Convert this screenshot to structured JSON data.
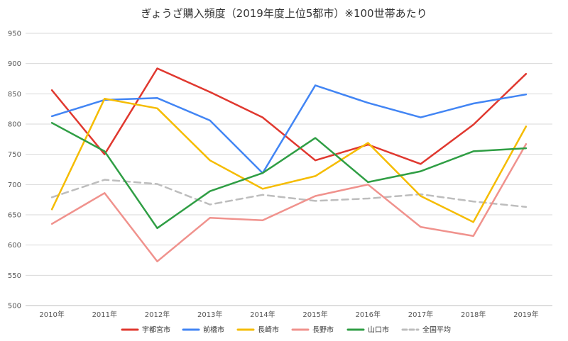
{
  "chart_data": {
    "type": "line",
    "title": "ぎょうざ購入頻度（2019年度上位5都市）※100世帯あたり",
    "xlabel": "",
    "ylabel": "",
    "ylim": [
      500,
      950
    ],
    "yticks": [
      500,
      550,
      600,
      650,
      700,
      750,
      800,
      850,
      900,
      950
    ],
    "grid": true,
    "legend_position": "bottom",
    "categories": [
      "2010年",
      "2011年",
      "2012年",
      "2013年",
      "2014年",
      "2015年",
      "2016年",
      "2017年",
      "2018年",
      "2019年"
    ],
    "series": [
      {
        "name": "宇都宮市",
        "color": "#e0382f",
        "dashed": false,
        "values": [
          856,
          750,
          892,
          853,
          811,
          740,
          766,
          734,
          799,
          883
        ]
      },
      {
        "name": "前橋市",
        "color": "#4285f4",
        "dashed": false,
        "values": [
          813,
          840,
          843,
          806,
          719,
          864,
          835,
          811,
          834,
          849
        ]
      },
      {
        "name": "長崎市",
        "color": "#f5bc00",
        "dashed": false,
        "values": [
          659,
          842,
          826,
          740,
          693,
          714,
          769,
          681,
          638,
          796
        ]
      },
      {
        "name": "長野市",
        "color": "#f0928d",
        "dashed": false,
        "values": [
          635,
          686,
          573,
          645,
          641,
          681,
          700,
          630,
          615,
          767
        ]
      },
      {
        "name": "山口市",
        "color": "#2f9e44",
        "dashed": false,
        "values": [
          802,
          755,
          628,
          689,
          719,
          777,
          704,
          722,
          755,
          760
        ]
      },
      {
        "name": "全国平均",
        "color": "#bdbdbd",
        "dashed": true,
        "values": [
          679,
          708,
          701,
          667,
          683,
          673,
          677,
          684,
          672,
          663
        ]
      }
    ]
  }
}
